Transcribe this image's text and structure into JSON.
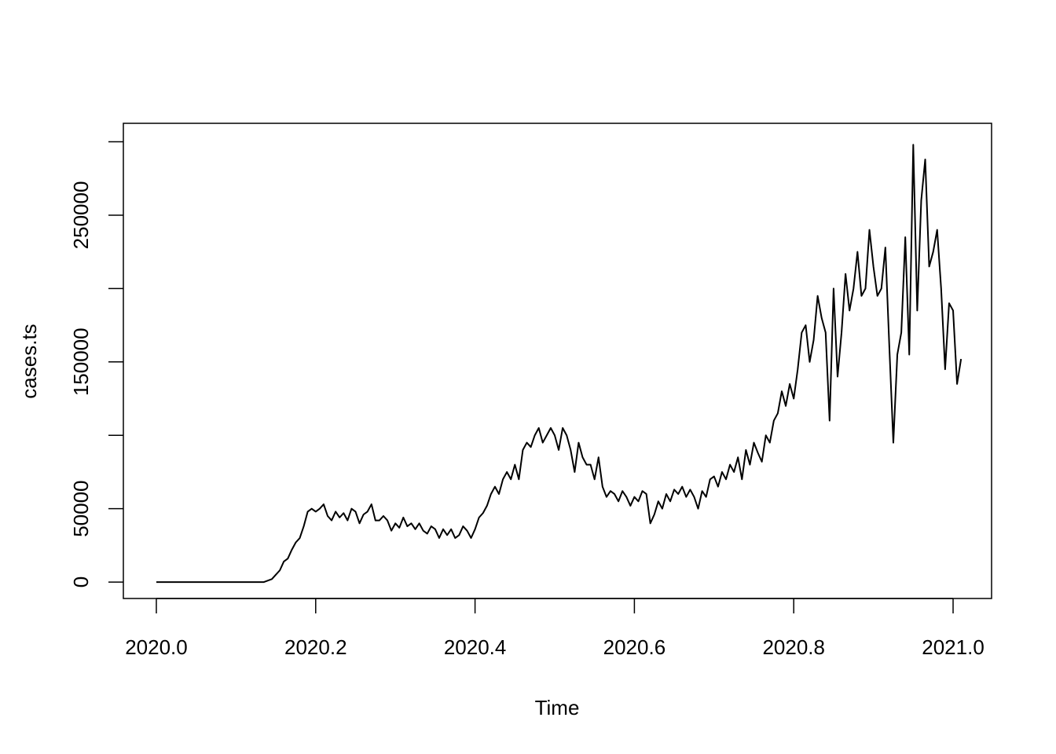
{
  "chart_data": {
    "type": "line",
    "x_label": "Time",
    "y_label": "cases.ts",
    "xlim": [
      2019.9586,
      2021.0483
    ],
    "ylim": [
      -11200,
      312600
    ],
    "xticks": [
      {
        "value": 2020,
        "label": "2020.0"
      },
      {
        "value": 2020.2,
        "label": "2020.2"
      },
      {
        "value": 2020.4,
        "label": "2020.4"
      },
      {
        "value": 2020.6,
        "label": "2020.6"
      },
      {
        "value": 2020.8,
        "label": "2020.8"
      },
      {
        "value": 2021,
        "label": "2021.0"
      }
    ],
    "yticks": [
      0,
      50000,
      100000,
      150000,
      200000,
      250000,
      300000
    ],
    "grid": false,
    "series": [
      {
        "name": "cases.ts",
        "color": "#000000",
        "x": [
          2020.0,
          2020.005,
          2020.01,
          2020.015,
          2020.02,
          2020.025,
          2020.03,
          2020.035,
          2020.04,
          2020.045,
          2020.05,
          2020.055,
          2020.06,
          2020.065,
          2020.07,
          2020.075,
          2020.08,
          2020.085,
          2020.09,
          2020.095,
          2020.1,
          2020.105,
          2020.11,
          2020.115,
          2020.12,
          2020.125,
          2020.13,
          2020.135,
          2020.14,
          2020.145,
          2020.15,
          2020.155,
          2020.16,
          2020.165,
          2020.17,
          2020.175,
          2020.18,
          2020.185,
          2020.19,
          2020.195,
          2020.2,
          2020.205,
          2020.21,
          2020.215,
          2020.22,
          2020.225,
          2020.23,
          2020.235,
          2020.24,
          2020.245,
          2020.25,
          2020.255,
          2020.26,
          2020.265,
          2020.27,
          2020.275,
          2020.28,
          2020.285,
          2020.29,
          2020.295,
          2020.3,
          2020.305,
          2020.31,
          2020.315,
          2020.32,
          2020.325,
          2020.33,
          2020.335,
          2020.34,
          2020.345,
          2020.35,
          2020.355,
          2020.36,
          2020.365,
          2020.37,
          2020.375,
          2020.38,
          2020.385,
          2020.39,
          2020.395,
          2020.4,
          2020.405,
          2020.41,
          2020.415,
          2020.42,
          2020.425,
          2020.43,
          2020.435,
          2020.44,
          2020.445,
          2020.45,
          2020.455,
          2020.46,
          2020.465,
          2020.47,
          2020.475,
          2020.48,
          2020.485,
          2020.49,
          2020.495,
          2020.5,
          2020.505,
          2020.51,
          2020.515,
          2020.52,
          2020.525,
          2020.53,
          2020.535,
          2020.54,
          2020.545,
          2020.55,
          2020.555,
          2020.56,
          2020.565,
          2020.57,
          2020.575,
          2020.58,
          2020.585,
          2020.59,
          2020.595,
          2020.6,
          2020.605,
          2020.61,
          2020.615,
          2020.62,
          2020.625,
          2020.63,
          2020.635,
          2020.64,
          2020.645,
          2020.65,
          2020.655,
          2020.66,
          2020.665,
          2020.67,
          2020.675,
          2020.68,
          2020.685,
          2020.69,
          2020.695,
          2020.7,
          2020.705,
          2020.71,
          2020.715,
          2020.72,
          2020.725,
          2020.73,
          2020.735,
          2020.74,
          2020.745,
          2020.75,
          2020.755,
          2020.76,
          2020.765,
          2020.77,
          2020.775,
          2020.78,
          2020.785,
          2020.79,
          2020.795,
          2020.8,
          2020.805,
          2020.81,
          2020.815,
          2020.82,
          2020.825,
          2020.83,
          2020.835,
          2020.84,
          2020.845,
          2020.85,
          2020.855,
          2020.86,
          2020.865,
          2020.87,
          2020.875,
          2020.88,
          2020.885,
          2020.89,
          2020.895,
          2020.9,
          2020.905,
          2020.91,
          2020.915,
          2020.92,
          2020.925,
          2020.93,
          2020.935,
          2020.94,
          2020.945,
          2020.95,
          2020.955,
          2020.96,
          2020.965,
          2020.97,
          2020.975,
          2020.98,
          2020.985,
          2020.99,
          2020.995,
          2021.0,
          2021.005,
          2021.01
        ],
        "values": [
          0,
          0,
          0,
          0,
          0,
          0,
          0,
          0,
          0,
          0,
          0,
          0,
          0,
          0,
          0,
          0,
          0,
          0,
          0,
          0,
          0,
          0,
          0,
          0,
          0,
          0,
          0,
          0,
          1000,
          2000,
          5000,
          8000,
          14000,
          16000,
          22000,
          27000,
          30000,
          38000,
          48000,
          50000,
          48000,
          50000,
          53000,
          45000,
          42000,
          48000,
          44000,
          47000,
          42000,
          50000,
          48000,
          40000,
          46000,
          48000,
          53000,
          42000,
          42000,
          45000,
          42000,
          35000,
          40000,
          37000,
          44000,
          38000,
          40000,
          36000,
          40000,
          35000,
          33000,
          38000,
          36000,
          30000,
          36000,
          32000,
          36000,
          30000,
          32000,
          38000,
          35000,
          30000,
          36000,
          44000,
          47000,
          52000,
          60000,
          65000,
          60000,
          70000,
          75000,
          70000,
          80000,
          70000,
          90000,
          95000,
          92000,
          100000,
          105000,
          95000,
          100000,
          105000,
          100000,
          90000,
          105000,
          100000,
          90000,
          75000,
          95000,
          85000,
          80000,
          80000,
          70000,
          85000,
          65000,
          58000,
          62000,
          60000,
          55000,
          62000,
          58000,
          52000,
          58000,
          55000,
          62000,
          60000,
          40000,
          46000,
          55000,
          50000,
          60000,
          55000,
          63000,
          60000,
          65000,
          58000,
          63000,
          58000,
          50000,
          62000,
          58000,
          70000,
          72000,
          65000,
          75000,
          70000,
          80000,
          75000,
          85000,
          70000,
          90000,
          80000,
          95000,
          88000,
          82000,
          100000,
          95000,
          110000,
          115000,
          130000,
          120000,
          135000,
          125000,
          145000,
          170000,
          175000,
          150000,
          165000,
          195000,
          180000,
          170000,
          110000,
          200000,
          140000,
          170000,
          210000,
          185000,
          200000,
          225000,
          195000,
          200000,
          240000,
          215000,
          195000,
          200000,
          228000,
          160000,
          95000,
          155000,
          170000,
          235000,
          155000,
          298000,
          185000,
          260000,
          288000,
          215000,
          225000,
          240000,
          200000,
          145000,
          190000,
          185000,
          135000,
          152000
        ]
      }
    ]
  }
}
